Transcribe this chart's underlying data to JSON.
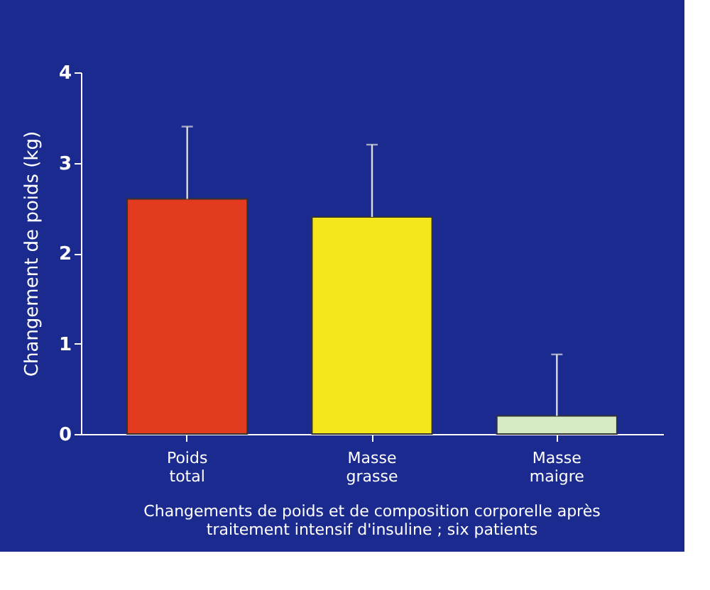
{
  "chart_data": {
    "type": "bar",
    "ylabel": "Changement de poids (kg)",
    "categories": [
      "Poids total",
      "Masse grasse",
      "Masse maigre"
    ],
    "values": [
      2.6,
      2.4,
      0.2
    ],
    "colors": [
      "#e33b1f",
      "#f6e61c",
      "#d6ebc4"
    ],
    "errors": [
      [
        2.6,
        3.4
      ],
      [
        2.4,
        3.2
      ],
      [
        0.2,
        0.88
      ]
    ],
    "ylim": [
      0,
      4
    ],
    "yticks": [
      0,
      1,
      2,
      3,
      4
    ],
    "grid": false,
    "legend": false,
    "annotations": [
      "Changements de poids et de composition corporelle après traitement intensif d'insuline ; six patients"
    ]
  }
}
